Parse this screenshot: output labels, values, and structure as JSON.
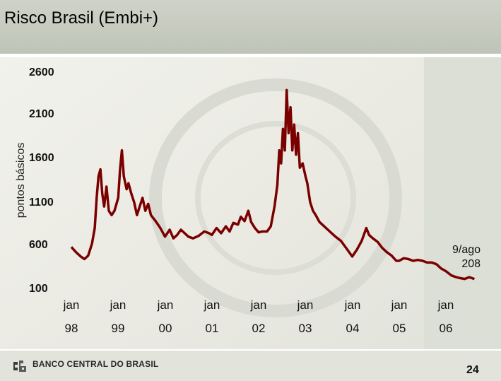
{
  "header": {
    "title": "Risco Brasil (Embi+)"
  },
  "footer": {
    "bank_name": "BANCO CENTRAL DO BRASIL",
    "page_number": "24",
    "logo_icon": "bcb-logo-icon"
  },
  "colors": {
    "series": "#7a0000"
  },
  "chart_data": {
    "type": "line",
    "title": "Risco Brasil (Embi+)",
    "ylabel": "pontos básicos",
    "xlabel": "",
    "ylim": [
      100,
      2600
    ],
    "yticks": [
      "2600",
      "2100",
      "1600",
      "1100",
      "600",
      "100"
    ],
    "xticks": [
      {
        "top": "jan",
        "bottom": "98",
        "x": 1998.0
      },
      {
        "top": "jan",
        "bottom": "99",
        "x": 1999.0
      },
      {
        "top": "jan",
        "bottom": "00",
        "x": 2000.0
      },
      {
        "top": "jan",
        "bottom": "01",
        "x": 2001.0
      },
      {
        "top": "jan",
        "bottom": "02",
        "x": 2002.0
      },
      {
        "top": "jan",
        "bottom": "03",
        "x": 2003.0
      },
      {
        "top": "jan",
        "bottom": "04",
        "x": 2004.0
      },
      {
        "top": "jan",
        "bottom": "05",
        "x": 2005.0
      },
      {
        "top": "jan",
        "bottom": "06",
        "x": 2006.0
      }
    ],
    "annotation": {
      "line1": "9/ago",
      "line2": "208"
    },
    "grid": false,
    "series": [
      {
        "values": [
          [
            1998.0,
            580
          ],
          [
            1998.1,
            520
          ],
          [
            1998.2,
            470
          ],
          [
            1998.28,
            440
          ],
          [
            1998.36,
            480
          ],
          [
            1998.44,
            620
          ],
          [
            1998.5,
            800
          ],
          [
            1998.54,
            1150
          ],
          [
            1998.58,
            1400
          ],
          [
            1998.62,
            1480
          ],
          [
            1998.66,
            1200
          ],
          [
            1998.7,
            1050
          ],
          [
            1998.75,
            1280
          ],
          [
            1998.8,
            1000
          ],
          [
            1998.86,
            950
          ],
          [
            1998.92,
            1000
          ],
          [
            1999.0,
            1150
          ],
          [
            1999.04,
            1480
          ],
          [
            1999.08,
            1700
          ],
          [
            1999.12,
            1400
          ],
          [
            1999.18,
            1250
          ],
          [
            1999.22,
            1320
          ],
          [
            1999.28,
            1200
          ],
          [
            1999.34,
            1100
          ],
          [
            1999.4,
            950
          ],
          [
            1999.46,
            1050
          ],
          [
            1999.52,
            1150
          ],
          [
            1999.58,
            1000
          ],
          [
            1999.64,
            1080
          ],
          [
            1999.7,
            950
          ],
          [
            1999.8,
            880
          ],
          [
            1999.9,
            800
          ],
          [
            2000.0,
            700
          ],
          [
            2000.1,
            780
          ],
          [
            2000.18,
            680
          ],
          [
            2000.26,
            720
          ],
          [
            2000.34,
            780
          ],
          [
            2000.42,
            740
          ],
          [
            2000.5,
            700
          ],
          [
            2000.6,
            680
          ],
          [
            2000.72,
            710
          ],
          [
            2000.84,
            760
          ],
          [
            2000.94,
            740
          ],
          [
            2001.0,
            720
          ],
          [
            2001.1,
            800
          ],
          [
            2001.2,
            740
          ],
          [
            2001.3,
            820
          ],
          [
            2001.38,
            760
          ],
          [
            2001.46,
            860
          ],
          [
            2001.56,
            840
          ],
          [
            2001.62,
            930
          ],
          [
            2001.7,
            880
          ],
          [
            2001.78,
            1000
          ],
          [
            2001.84,
            870
          ],
          [
            2001.92,
            800
          ],
          [
            2002.0,
            750
          ],
          [
            2002.08,
            760
          ],
          [
            2002.18,
            760
          ],
          [
            2002.26,
            820
          ],
          [
            2002.34,
            1050
          ],
          [
            2002.4,
            1300
          ],
          [
            2002.44,
            1700
          ],
          [
            2002.48,
            1550
          ],
          [
            2002.52,
            1950
          ],
          [
            2002.56,
            1700
          ],
          [
            2002.6,
            2400
          ],
          [
            2002.64,
            1900
          ],
          [
            2002.68,
            2200
          ],
          [
            2002.72,
            1700
          ],
          [
            2002.76,
            2000
          ],
          [
            2002.8,
            1650
          ],
          [
            2002.84,
            1900
          ],
          [
            2002.88,
            1500
          ],
          [
            2002.94,
            1550
          ],
          [
            2003.0,
            1400
          ],
          [
            2003.04,
            1320
          ],
          [
            2003.1,
            1100
          ],
          [
            2003.16,
            1000
          ],
          [
            2003.22,
            950
          ],
          [
            2003.3,
            870
          ],
          [
            2003.4,
            820
          ],
          [
            2003.52,
            760
          ],
          [
            2003.64,
            700
          ],
          [
            2003.76,
            650
          ],
          [
            2003.88,
            560
          ],
          [
            2004.0,
            470
          ],
          [
            2004.1,
            550
          ],
          [
            2004.2,
            650
          ],
          [
            2004.3,
            800
          ],
          [
            2004.36,
            720
          ],
          [
            2004.44,
            680
          ],
          [
            2004.54,
            640
          ],
          [
            2004.64,
            570
          ],
          [
            2004.74,
            520
          ],
          [
            2004.84,
            480
          ],
          [
            2004.94,
            420
          ],
          [
            2005.0,
            420
          ],
          [
            2005.1,
            450
          ],
          [
            2005.2,
            440
          ],
          [
            2005.3,
            420
          ],
          [
            2005.4,
            430
          ],
          [
            2005.5,
            420
          ],
          [
            2005.6,
            400
          ],
          [
            2005.7,
            400
          ],
          [
            2005.8,
            380
          ],
          [
            2005.9,
            330
          ],
          [
            2006.0,
            300
          ],
          [
            2006.12,
            250
          ],
          [
            2006.22,
            230
          ],
          [
            2006.3,
            220
          ],
          [
            2006.4,
            210
          ],
          [
            2006.5,
            230
          ],
          [
            2006.58,
            215
          ],
          [
            2006.61,
            208
          ]
        ]
      }
    ]
  }
}
